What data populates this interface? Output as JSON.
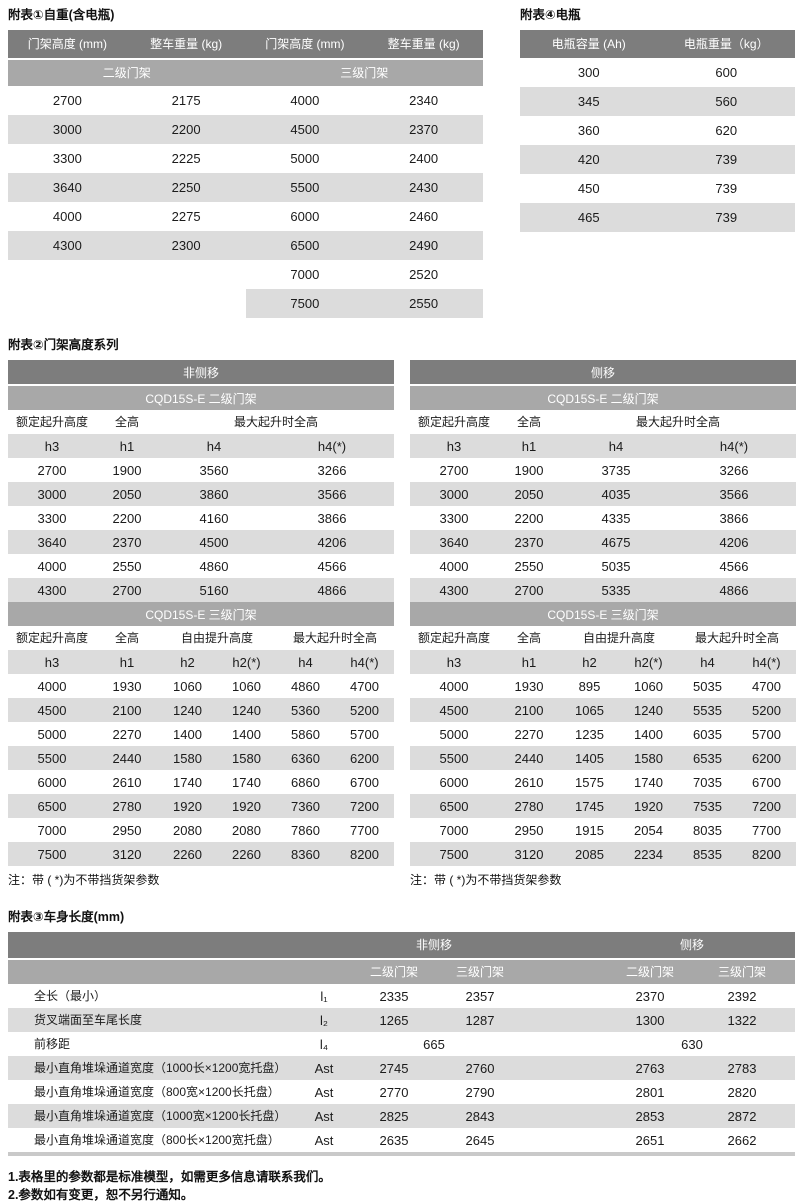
{
  "colors": {
    "header_dark": "#7d7d7d",
    "header_mid": "#a8a8a8",
    "row_stripe": "#dcdcdc",
    "bottom_bar": "#c9c9c9",
    "text": "#1b1b1b"
  },
  "table1": {
    "title": "附表①自重(含电瓶)",
    "headers": [
      "门架高度 (mm)",
      "整车重量 (kg)",
      "门架高度 (mm)",
      "整车重量 (kg)"
    ],
    "group_headers": [
      "二级门架",
      "三级门架"
    ],
    "rows": [
      [
        "2700",
        "2175",
        "4000",
        "2340"
      ],
      [
        "3000",
        "2200",
        "4500",
        "2370"
      ],
      [
        "3300",
        "2225",
        "5000",
        "2400"
      ],
      [
        "3640",
        "2250",
        "5500",
        "2430"
      ],
      [
        "4000",
        "2275",
        "6000",
        "2460"
      ],
      [
        "4300",
        "2300",
        "6500",
        "2490"
      ],
      [
        "",
        "",
        "7000",
        "2520"
      ],
      [
        "",
        "",
        "7500",
        "2550"
      ]
    ]
  },
  "table4": {
    "title": "附表④电瓶",
    "headers": [
      "电瓶容量 (Ah)",
      "电瓶重量（kg）"
    ],
    "rows": [
      [
        "300",
        "600"
      ],
      [
        "345",
        "560"
      ],
      [
        "360",
        "620"
      ],
      [
        "420",
        "739"
      ],
      [
        "450",
        "739"
      ],
      [
        "465",
        "739"
      ]
    ]
  },
  "table2": {
    "title": "附表②门架高度系列",
    "left": {
      "band": "非侧移",
      "duplex_title": "CQD15S-E  二级门架",
      "duplex_labels": [
        "额定起升高度",
        "全高",
        "最大起升时全高"
      ],
      "duplex_codes": [
        "h3",
        "h1",
        "h4",
        "h4(*)"
      ],
      "duplex_rows": [
        [
          "2700",
          "1900",
          "3560",
          "3266"
        ],
        [
          "3000",
          "2050",
          "3860",
          "3566"
        ],
        [
          "3300",
          "2200",
          "4160",
          "3866"
        ],
        [
          "3640",
          "2370",
          "4500",
          "4206"
        ],
        [
          "4000",
          "2550",
          "4860",
          "4566"
        ],
        [
          "4300",
          "2700",
          "5160",
          "4866"
        ]
      ],
      "triplex_title": "CQD15S-E  三级门架",
      "triplex_labels": [
        "额定起升高度",
        "全高",
        "自由提升高度",
        "最大起升时全高"
      ],
      "triplex_codes": [
        "h3",
        "h1",
        "h2",
        "h2(*)",
        "h4",
        "h4(*)"
      ],
      "triplex_rows": [
        [
          "4000",
          "1930",
          "1060",
          "1060",
          "4860",
          "4700"
        ],
        [
          "4500",
          "2100",
          "1240",
          "1240",
          "5360",
          "5200"
        ],
        [
          "5000",
          "2270",
          "1400",
          "1400",
          "5860",
          "5700"
        ],
        [
          "5500",
          "2440",
          "1580",
          "1580",
          "6360",
          "6200"
        ],
        [
          "6000",
          "2610",
          "1740",
          "1740",
          "6860",
          "6700"
        ],
        [
          "6500",
          "2780",
          "1920",
          "1920",
          "7360",
          "7200"
        ],
        [
          "7000",
          "2950",
          "2080",
          "2080",
          "7860",
          "7700"
        ],
        [
          "7500",
          "3120",
          "2260",
          "2260",
          "8360",
          "8200"
        ]
      ],
      "note": "注：带 ( *)为不带挡货架参数"
    },
    "right": {
      "band": "侧移",
      "duplex_title": "CQD15S-E  二级门架",
      "duplex_labels": [
        "额定起升高度",
        "全高",
        "最大起升时全高"
      ],
      "duplex_codes": [
        "h3",
        "h1",
        "h4",
        "h4(*)"
      ],
      "duplex_rows": [
        [
          "2700",
          "1900",
          "3735",
          "3266"
        ],
        [
          "3000",
          "2050",
          "4035",
          "3566"
        ],
        [
          "3300",
          "2200",
          "4335",
          "3866"
        ],
        [
          "3640",
          "2370",
          "4675",
          "4206"
        ],
        [
          "4000",
          "2550",
          "5035",
          "4566"
        ],
        [
          "4300",
          "2700",
          "5335",
          "4866"
        ]
      ],
      "triplex_title": "CQD15S-E  三级门架",
      "triplex_labels": [
        "额定起升高度",
        "全高",
        "自由提升高度",
        "最大起升时全高"
      ],
      "triplex_codes": [
        "h3",
        "h1",
        "h2",
        "h2(*)",
        "h4",
        "h4(*)"
      ],
      "triplex_rows": [
        [
          "4000",
          "1930",
          "895",
          "1060",
          "5035",
          "4700"
        ],
        [
          "4500",
          "2100",
          "1065",
          "1240",
          "5535",
          "5200"
        ],
        [
          "5000",
          "2270",
          "1235",
          "1400",
          "6035",
          "5700"
        ],
        [
          "5500",
          "2440",
          "1405",
          "1580",
          "6535",
          "6200"
        ],
        [
          "6000",
          "2610",
          "1575",
          "1740",
          "7035",
          "6700"
        ],
        [
          "6500",
          "2780",
          "1745",
          "1920",
          "7535",
          "7200"
        ],
        [
          "7000",
          "2950",
          "1915",
          "2054",
          "8035",
          "7700"
        ],
        [
          "7500",
          "3120",
          "2085",
          "2234",
          "8535",
          "8200"
        ]
      ],
      "note": "注：带 ( *)为不带挡货架参数"
    }
  },
  "table3": {
    "title": "附表③车身长度(mm)",
    "band_nonside": "非侧移",
    "band_side": "侧移",
    "col_headers": [
      "二级门架",
      "三级门架",
      "二级门架",
      "三级门架"
    ],
    "rows": [
      {
        "label": "全长（最小）",
        "sym": "l₁",
        "span": false,
        "v": [
          "2335",
          "2357",
          "2370",
          "2392"
        ]
      },
      {
        "label": "货叉端面至车尾长度",
        "sym": "l₂",
        "span": false,
        "v": [
          "1265",
          "1287",
          "1300",
          "1322"
        ]
      },
      {
        "label": "前移距",
        "sym": "l₄",
        "span": true,
        "v": [
          "665",
          "630"
        ]
      },
      {
        "label": "最小直角堆垛通道宽度（1000长×1200宽托盘）",
        "sym": "Ast",
        "span": false,
        "v": [
          "2745",
          "2760",
          "2763",
          "2783"
        ]
      },
      {
        "label": "最小直角堆垛通道宽度（800宽×1200长托盘）",
        "sym": "Ast",
        "span": false,
        "v": [
          "2770",
          "2790",
          "2801",
          "2820"
        ]
      },
      {
        "label": "最小直角堆垛通道宽度（1000宽×1200长托盘）",
        "sym": "Ast",
        "span": false,
        "v": [
          "2825",
          "2843",
          "2853",
          "2872"
        ]
      },
      {
        "label": "最小直角堆垛通道宽度（800长×1200宽托盘）",
        "sym": "Ast",
        "span": false,
        "v": [
          "2635",
          "2645",
          "2651",
          "2662"
        ]
      }
    ]
  },
  "footnotes": [
    "1.表格里的参数都是标准模型，如需更多信息请联系我们。",
    "2.参数如有变更，恕不另行通知。"
  ]
}
